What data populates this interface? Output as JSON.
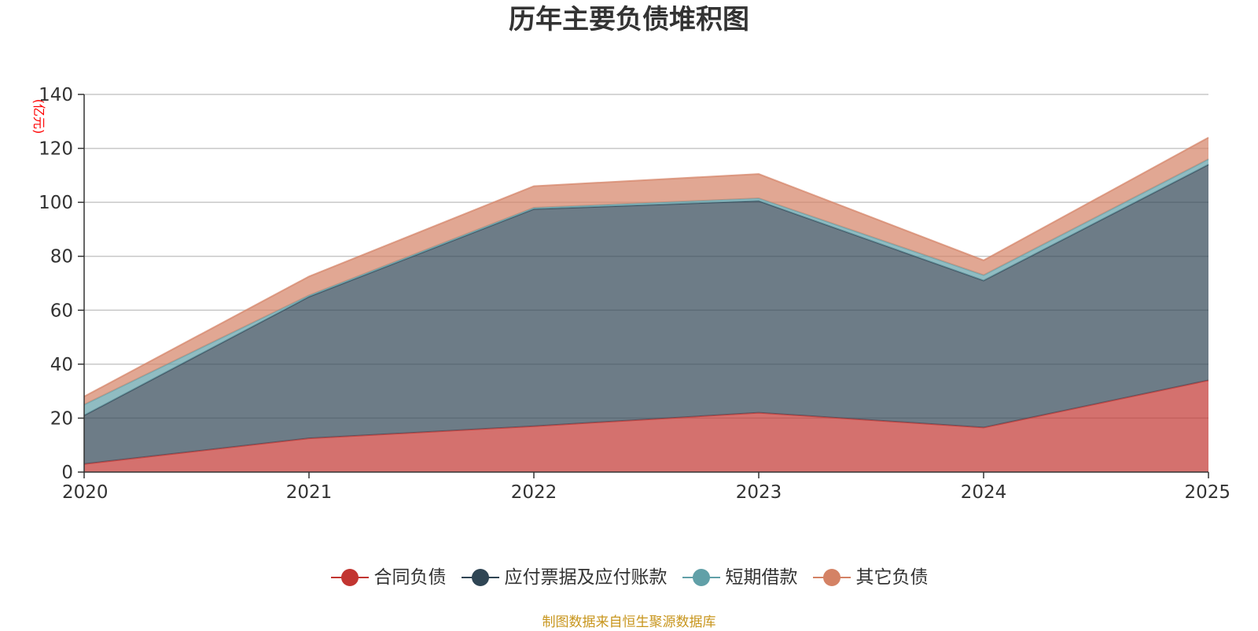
{
  "chart_data": {
    "type": "area",
    "stacked": true,
    "title": "历年主要负债堆积图",
    "ylabel": "(亿元)",
    "ylim": [
      0,
      140
    ],
    "yticks": [
      0,
      20,
      40,
      60,
      80,
      100,
      120,
      140
    ],
    "x": [
      "2020",
      "2021",
      "2022",
      "2023",
      "2024",
      "2025"
    ],
    "series": [
      {
        "name": "合同负债",
        "color": "#c23531",
        "values": [
          3,
          12.5,
          17,
          22,
          16.5,
          34
        ]
      },
      {
        "name": "应付票据及应付账款",
        "color": "#2f4554",
        "values": [
          18,
          52.5,
          80.5,
          78.5,
          54.5,
          80
        ]
      },
      {
        "name": "短期借款",
        "color": "#61a0a8",
        "values": [
          4,
          0.5,
          0.5,
          1,
          2,
          2
        ]
      },
      {
        "name": "其它负债",
        "color": "#d48265",
        "values": [
          3,
          7,
          8,
          9,
          5.5,
          8
        ]
      }
    ],
    "grid": true,
    "legend_position": "bottom"
  },
  "source_note": "制图数据来自恒生聚源数据库"
}
